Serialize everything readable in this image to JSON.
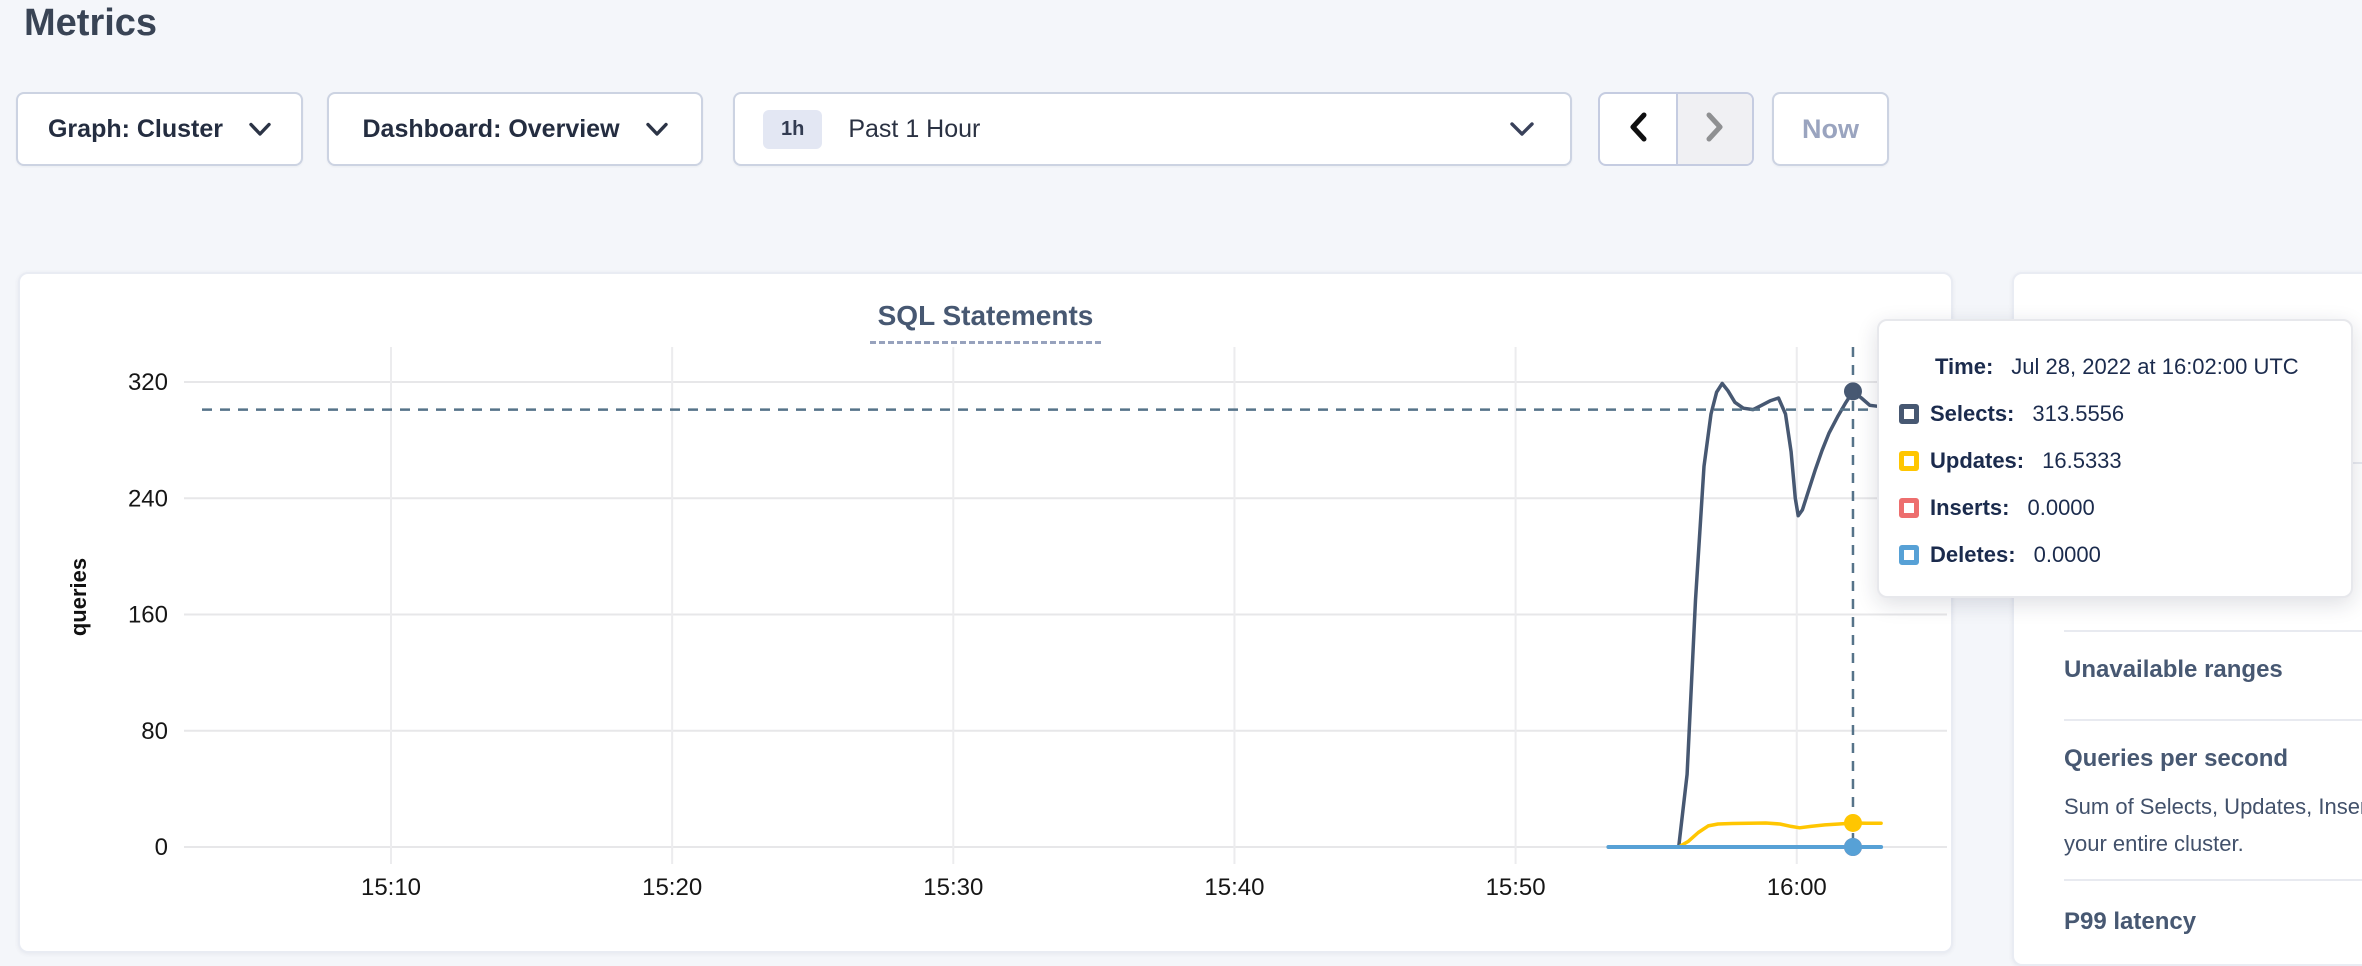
{
  "page": {
    "title": "Metrics",
    "background": "#f4f6fa"
  },
  "controls": {
    "graph_dropdown": {
      "label": "Graph: Cluster",
      "icon": "chevron-down"
    },
    "dashboard_dropdown": {
      "label": "Dashboard: Overview",
      "icon": "chevron-down"
    },
    "time_selector": {
      "badge": "1h",
      "label": "Past 1 Hour",
      "icon": "chevron-down"
    },
    "prev_button": {
      "icon": "chevron-left"
    },
    "next_button": {
      "icon": "chevron-right",
      "disabled": true
    },
    "now_button": {
      "label": "Now",
      "disabled": true
    }
  },
  "chart_data": {
    "type": "line",
    "title": "SQL Statements",
    "ylabel": "queries",
    "ylim": [
      0,
      345
    ],
    "yticks": [
      0,
      80,
      160,
      240,
      320
    ],
    "xticks": [
      {
        "t": 10,
        "label": "15:10"
      },
      {
        "t": 20,
        "label": "15:20"
      },
      {
        "t": 30,
        "label": "15:30"
      },
      {
        "t": 40,
        "label": "15:40"
      },
      {
        "t": 50,
        "label": "15:50"
      },
      {
        "t": 60,
        "label": "16:00"
      }
    ],
    "x_unit": "minutes after 15:00 UTC",
    "grid": true,
    "series": [
      {
        "name": "Selects",
        "color": "#475872",
        "width": 3.5,
        "points": [
          [
            53.3,
            0
          ],
          [
            55.8,
            0
          ],
          [
            56.1,
            50
          ],
          [
            56.4,
            170
          ],
          [
            56.7,
            262
          ],
          [
            56.95,
            298
          ],
          [
            57.15,
            313
          ],
          [
            57.35,
            319
          ],
          [
            57.55,
            314
          ],
          [
            57.8,
            306
          ],
          [
            58.1,
            302
          ],
          [
            58.45,
            301
          ],
          [
            58.75,
            304
          ],
          [
            59.05,
            307
          ],
          [
            59.35,
            309
          ],
          [
            59.6,
            298
          ],
          [
            59.8,
            272
          ],
          [
            59.95,
            240
          ],
          [
            60.05,
            228
          ],
          [
            60.2,
            232
          ],
          [
            60.4,
            244
          ],
          [
            60.65,
            259
          ],
          [
            60.9,
            273
          ],
          [
            61.15,
            285
          ],
          [
            61.45,
            296
          ],
          [
            61.75,
            306
          ],
          [
            62.0,
            313.5556
          ],
          [
            62.3,
            309
          ],
          [
            62.6,
            304
          ],
          [
            63.0,
            303
          ]
        ]
      },
      {
        "name": "Updates",
        "color": "#ffc601",
        "width": 3.5,
        "points": [
          [
            53.3,
            0
          ],
          [
            55.8,
            0
          ],
          [
            56.15,
            4
          ],
          [
            56.5,
            10
          ],
          [
            56.85,
            14.5
          ],
          [
            57.2,
            15.8
          ],
          [
            57.7,
            16.2
          ],
          [
            58.3,
            16.4
          ],
          [
            58.9,
            16.5
          ],
          [
            59.4,
            15.8
          ],
          [
            59.8,
            14.2
          ],
          [
            60.1,
            13.2
          ],
          [
            60.5,
            14.2
          ],
          [
            61.0,
            15.2
          ],
          [
            61.5,
            15.8
          ],
          [
            62.0,
            16.5333
          ],
          [
            62.5,
            16.3
          ],
          [
            63.0,
            16.4
          ]
        ]
      },
      {
        "name": "Inserts",
        "color": "#ed6e6e",
        "width": 3,
        "points": [
          [
            53.3,
            0
          ],
          [
            63.0,
            0
          ]
        ]
      },
      {
        "name": "Deletes",
        "color": "#57a1d6",
        "width": 4,
        "points": [
          [
            53.3,
            0
          ],
          [
            63.0,
            0
          ]
        ]
      }
    ],
    "hover": {
      "t": 62,
      "guide_value": 301,
      "dots": [
        {
          "series": "Selects",
          "v": 313.5556
        },
        {
          "series": "Updates",
          "v": 16.5333
        },
        {
          "series": "Inserts",
          "v": 0
        },
        {
          "series": "Deletes",
          "v": 0
        }
      ]
    }
  },
  "tooltip": {
    "time_label": "Time:",
    "time_value": "Jul 28, 2022 at 16:02:00 UTC",
    "rows": [
      {
        "label": "Selects:",
        "value": "313.5556",
        "color": "#475872"
      },
      {
        "label": "Updates:",
        "value": "16.5333",
        "color": "#ffc601"
      },
      {
        "label": "Inserts:",
        "value": "0.0000",
        "color": "#ed6e6e"
      },
      {
        "label": "Deletes:",
        "value": "0.0000",
        "color": "#57a1d6"
      }
    ]
  },
  "sidebar": {
    "heading1": "Unavailable ranges",
    "heading2": "Queries per second",
    "desc_line1": "Sum of Selects, Updates, Inser",
    "desc_line2": "your entire cluster.",
    "heading3": "P99 latency"
  }
}
